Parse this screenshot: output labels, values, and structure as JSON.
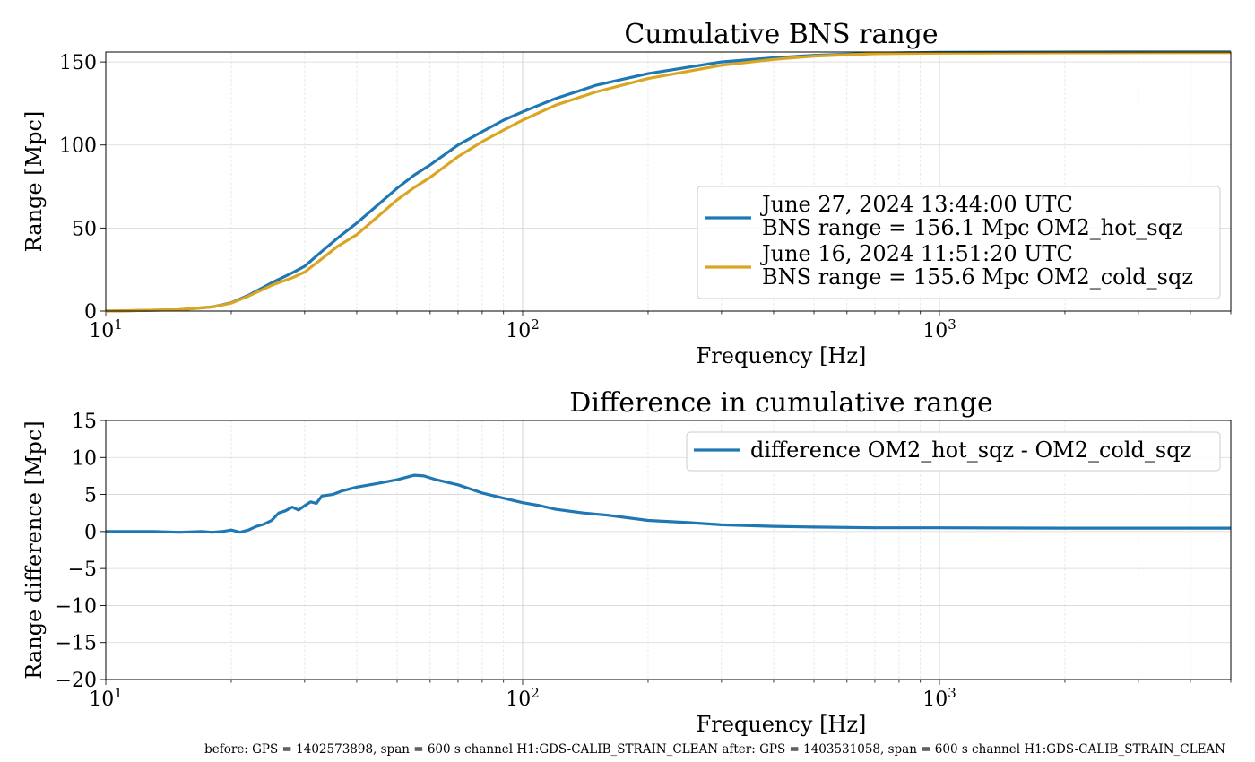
{
  "footer": "before: GPS = 1402573898, span = 600 s channel H1:GDS-CALIB_STRAIN_CLEAN after: GPS = 1403531058, span = 600 s channel H1:GDS-CALIB_STRAIN_CLEAN",
  "chart_data": [
    {
      "type": "line",
      "title": "Cumulative BNS range",
      "xlabel": "Frequency [Hz]",
      "ylabel": "Range [Mpc]",
      "xscale": "log",
      "xlim": [
        10,
        5000
      ],
      "ylim": [
        0,
        156
      ],
      "xticks": [
        {
          "v": 10,
          "base": "10",
          "exp": "1"
        },
        {
          "v": 100,
          "base": "10",
          "exp": "2"
        },
        {
          "v": 1000,
          "base": "10",
          "exp": "3"
        }
      ],
      "yticks": [
        {
          "v": 0,
          "label": "0"
        },
        {
          "v": 50,
          "label": "50"
        },
        {
          "v": 100,
          "label": "100"
        },
        {
          "v": 150,
          "label": "150"
        }
      ],
      "grid": true,
      "legend_position": "lower-right",
      "series": [
        {
          "name": "June 27, 2024 13:44:00 UTC",
          "name2": "BNS range = 156.1 Mpc OM2_hot_sqz",
          "color": "#1f77b4",
          "x": [
            10,
            12,
            15,
            18,
            20,
            22,
            25,
            28,
            30,
            33,
            36,
            40,
            45,
            50,
            55,
            60,
            70,
            80,
            90,
            100,
            120,
            150,
            200,
            300,
            400,
            500,
            700,
            1000,
            2000,
            5000
          ],
          "y": [
            0,
            0.3,
            0.8,
            2.5,
            5,
            9.5,
            17,
            23,
            27,
            36,
            44,
            53,
            64,
            74,
            82,
            88,
            100,
            108,
            115,
            120,
            128,
            136,
            143,
            150,
            152.5,
            154,
            155.3,
            155.8,
            156,
            156.1
          ]
        },
        {
          "name": "June 16, 2024 11:51:20 UTC",
          "name2": "BNS range = 155.6 Mpc OM2_cold_sqz",
          "color": "#daa520",
          "x": [
            10,
            12,
            15,
            18,
            20,
            22,
            25,
            28,
            30,
            33,
            36,
            40,
            45,
            50,
            55,
            60,
            70,
            80,
            90,
            100,
            120,
            150,
            200,
            300,
            400,
            500,
            700,
            1000,
            2000,
            5000
          ],
          "y": [
            0,
            0.3,
            0.8,
            2.5,
            4.8,
            9,
            15.5,
            20,
            23.5,
            31.5,
            39,
            46,
            57,
            67,
            74.5,
            80.5,
            93,
            102,
            109,
            115,
            124,
            132,
            140,
            148,
            151.5,
            153.5,
            155,
            155.3,
            155.5,
            155.6
          ]
        }
      ]
    },
    {
      "type": "line",
      "title": "Difference in cumulative range",
      "xlabel": "Frequency [Hz]",
      "ylabel": "Range difference [Mpc]",
      "xscale": "log",
      "xlim": [
        10,
        5000
      ],
      "ylim": [
        -20,
        15
      ],
      "xticks": [
        {
          "v": 10,
          "base": "10",
          "exp": "1"
        },
        {
          "v": 100,
          "base": "10",
          "exp": "2"
        },
        {
          "v": 1000,
          "base": "10",
          "exp": "3"
        }
      ],
      "yticks": [
        {
          "v": -20,
          "label": "−20"
        },
        {
          "v": -15,
          "label": "−15"
        },
        {
          "v": -10,
          "label": "−10"
        },
        {
          "v": -5,
          "label": "−5"
        },
        {
          "v": 0,
          "label": "0"
        },
        {
          "v": 5,
          "label": "5"
        },
        {
          "v": 10,
          "label": "10"
        },
        {
          "v": 15,
          "label": "15"
        }
      ],
      "grid": true,
      "legend_position": "upper-right",
      "series": [
        {
          "name": "difference OM2_hot_sqz - OM2_cold_sqz",
          "color": "#1f77b4",
          "x": [
            10,
            13,
            15,
            17,
            18,
            19,
            20,
            21,
            22,
            23,
            24,
            25,
            26,
            27,
            28,
            29,
            30,
            31,
            32,
            33,
            35,
            37,
            40,
            45,
            50,
            55,
            58,
            62,
            70,
            80,
            90,
            100,
            110,
            120,
            140,
            160,
            200,
            250,
            300,
            400,
            500,
            700,
            1000,
            2000,
            5000
          ],
          "y": [
            0,
            0,
            -0.1,
            0,
            -0.1,
            0,
            0.2,
            -0.1,
            0.2,
            0.7,
            1.0,
            1.5,
            2.5,
            2.8,
            3.3,
            2.9,
            3.5,
            4.0,
            3.8,
            4.8,
            5.0,
            5.5,
            6.0,
            6.5,
            7.0,
            7.6,
            7.5,
            7.0,
            6.3,
            5.2,
            4.5,
            3.9,
            3.5,
            3.0,
            2.5,
            2.2,
            1.5,
            1.2,
            0.9,
            0.7,
            0.6,
            0.5,
            0.5,
            0.45,
            0.45
          ]
        }
      ]
    }
  ]
}
